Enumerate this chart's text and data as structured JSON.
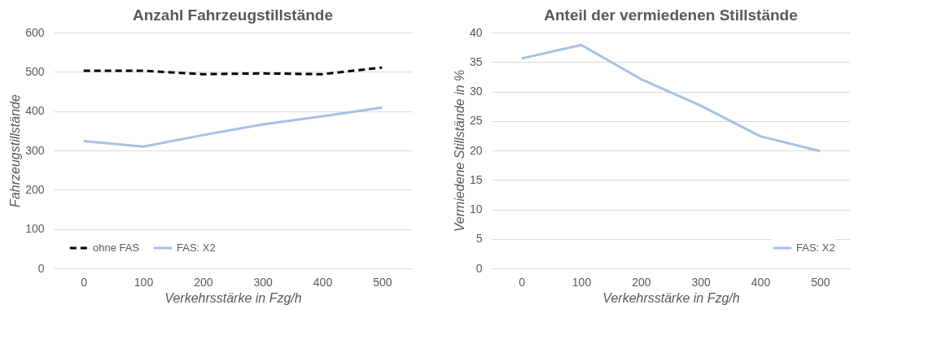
{
  "chart_data": [
    {
      "type": "line",
      "title": "Anzahl Fahrzeugstillstände",
      "xlabel": "Verkehrsstärke in Fzg/h",
      "ylabel": "Fahrzeugstillstände",
      "categories": [
        "0",
        "100",
        "200",
        "300",
        "400",
        "500"
      ],
      "ylim": [
        0,
        600
      ],
      "yticks": [
        0,
        100,
        200,
        300,
        400,
        500,
        600
      ],
      "grid": "y",
      "legend": "bottom left",
      "marker": "none",
      "series": [
        {
          "name": "ohne FAS",
          "color": "#000000",
          "line_style": "dashed",
          "values": [
            503,
            503,
            494,
            496,
            494,
            511
          ]
        },
        {
          "name": "FAS: X2",
          "color": "#a9c0e4",
          "line_style": "solid",
          "values": [
            324,
            310,
            339,
            366,
            387,
            409
          ]
        }
      ]
    },
    {
      "type": "line",
      "title": "Anteil der vermiedenen Stillstände",
      "xlabel": "Verkehrsstärke in Fzg/h",
      "ylabel": "Vermiedene Stillstände in %",
      "categories": [
        "0",
        "100",
        "200",
        "300",
        "400",
        "500"
      ],
      "ylim": [
        0,
        40
      ],
      "yticks": [
        0,
        5,
        10,
        15,
        20,
        25,
        30,
        35,
        40
      ],
      "grid": "y",
      "legend": "bottom right",
      "marker": "none",
      "series": [
        {
          "name": "FAS: X2",
          "color": "#a9c0e4",
          "line_style": "solid",
          "values": [
            35.6,
            37.9,
            32.1,
            27.6,
            22.4,
            19.9
          ]
        }
      ]
    }
  ]
}
